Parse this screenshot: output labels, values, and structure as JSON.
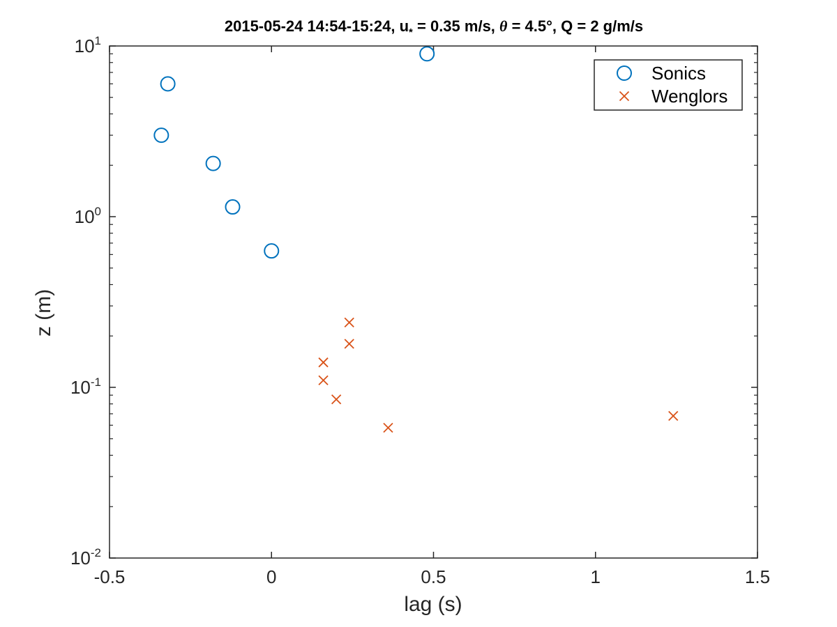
{
  "chart_data": {
    "type": "scatter",
    "title": {
      "date_range": "2015-05-24 14:54-15:24, ",
      "ustar_symbol": "u",
      "ustar_subscript": "*",
      "ustar_value": " = 0.35 m/s, ",
      "theta_symbol": "θ",
      "theta_value": " = 4.5°, Q = 2 g/m/s"
    },
    "xlabel": "lag (s)",
    "ylabel": "z (m)",
    "xlim": [
      -0.5,
      1.5
    ],
    "ylim": [
      0.01,
      10
    ],
    "yscale": "log",
    "x_ticks": [
      {
        "value": -0.5,
        "label": "-0.5"
      },
      {
        "value": 0,
        "label": "0"
      },
      {
        "value": 0.5,
        "label": "0.5"
      },
      {
        "value": 1,
        "label": "1"
      },
      {
        "value": 1.5,
        "label": "1.5"
      }
    ],
    "y_ticks": [
      {
        "value": 0.01,
        "base": "10",
        "exp": "-2"
      },
      {
        "value": 0.1,
        "base": "10",
        "exp": "-1"
      },
      {
        "value": 1,
        "base": "10",
        "exp": "0"
      },
      {
        "value": 10,
        "base": "10",
        "exp": "1"
      }
    ],
    "grid": false,
    "legend_position": "top-right",
    "series": [
      {
        "name": "Sonics",
        "marker": "circle",
        "color": "#0072BD",
        "points": [
          {
            "x": -0.32,
            "y": 6.0
          },
          {
            "x": -0.34,
            "y": 3.0
          },
          {
            "x": -0.18,
            "y": 2.05
          },
          {
            "x": -0.12,
            "y": 1.14
          },
          {
            "x": 0.0,
            "y": 0.63
          },
          {
            "x": 0.48,
            "y": 9.0
          }
        ]
      },
      {
        "name": "Wenglors",
        "marker": "x",
        "color": "#D95319",
        "points": [
          {
            "x": 0.24,
            "y": 0.24
          },
          {
            "x": 0.24,
            "y": 0.18
          },
          {
            "x": 0.16,
            "y": 0.14
          },
          {
            "x": 0.16,
            "y": 0.11
          },
          {
            "x": 0.2,
            "y": 0.085
          },
          {
            "x": 0.36,
            "y": 0.058
          },
          {
            "x": 1.24,
            "y": 0.068
          }
        ]
      }
    ]
  }
}
